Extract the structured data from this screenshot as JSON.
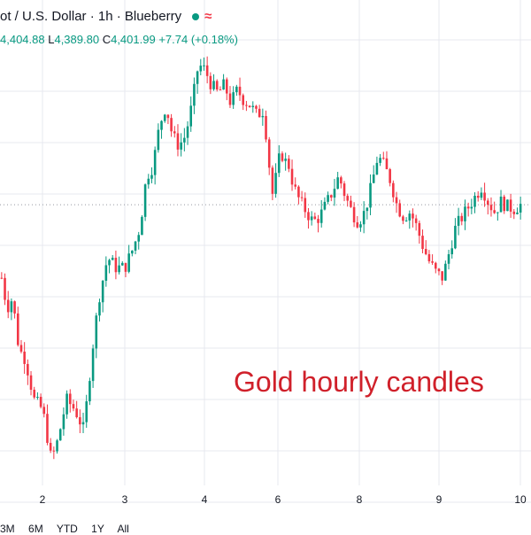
{
  "header": {
    "title": "ot / U.S. Dollar · 1h · Blueberry",
    "ohlc": {
      "open": "4,404.88",
      "high_label": "L",
      "high": "4,389.80",
      "close_label": "C",
      "close": "4,401.99",
      "change": "+7.74 (+0.18%)"
    },
    "status_color": "#089981"
  },
  "annotation_text": "Gold hourly candles",
  "range_buttons": [
    "3M",
    "6M",
    "YTD",
    "1Y",
    "All"
  ],
  "colors": {
    "up": "#089981",
    "down": "#f23645",
    "grid": "#e7e9ef",
    "axis_text": "#131722",
    "annotation": "#d0202a"
  },
  "chart_data": {
    "type": "candlestick",
    "symbol": "Gold Spot / U.S. Dollar",
    "interval": "1h",
    "x_ticks": [
      "2",
      "3",
      "4",
      "6",
      "8",
      "9",
      "10"
    ],
    "ylim": [
      4150,
      4560
    ],
    "last_price": 4401.99,
    "close_path": [
      [
        0,
        4330
      ],
      [
        5,
        4300
      ],
      [
        10,
        4310
      ],
      [
        16,
        4260
      ],
      [
        22,
        4250
      ],
      [
        30,
        4210
      ],
      [
        38,
        4200
      ],
      [
        46,
        4150
      ],
      [
        52,
        4170
      ],
      [
        60,
        4210
      ],
      [
        68,
        4200
      ],
      [
        76,
        4180
      ],
      [
        84,
        4260
      ],
      [
        90,
        4310
      ],
      [
        98,
        4350
      ],
      [
        106,
        4340
      ],
      [
        114,
        4340
      ],
      [
        122,
        4360
      ],
      [
        128,
        4380
      ],
      [
        134,
        4430
      ],
      [
        140,
        4440
      ],
      [
        146,
        4480
      ],
      [
        152,
        4500
      ],
      [
        158,
        4470
      ],
      [
        164,
        4460
      ],
      [
        170,
        4470
      ],
      [
        176,
        4500
      ],
      [
        182,
        4540
      ],
      [
        188,
        4535
      ],
      [
        194,
        4520
      ],
      [
        200,
        4512
      ],
      [
        206,
        4520
      ],
      [
        212,
        4502
      ],
      [
        218,
        4515
      ],
      [
        224,
        4505
      ],
      [
        230,
        4500
      ],
      [
        236,
        4490
      ],
      [
        242,
        4495
      ],
      [
        246,
        4460
      ],
      [
        250,
        4410
      ],
      [
        254,
        4430
      ],
      [
        258,
        4455
      ],
      [
        262,
        4445
      ],
      [
        266,
        4440
      ],
      [
        270,
        4420
      ],
      [
        276,
        4405
      ],
      [
        282,
        4395
      ],
      [
        288,
        4385
      ],
      [
        294,
        4390
      ],
      [
        300,
        4402
      ],
      [
        306,
        4415
      ],
      [
        312,
        4430
      ],
      [
        318,
        4410
      ],
      [
        324,
        4395
      ],
      [
        330,
        4385
      ],
      [
        336,
        4395
      ],
      [
        342,
        4420
      ],
      [
        348,
        4450
      ],
      [
        354,
        4440
      ],
      [
        360,
        4425
      ],
      [
        366,
        4400
      ],
      [
        372,
        4390
      ],
      [
        378,
        4395
      ],
      [
        384,
        4380
      ],
      [
        390,
        4360
      ],
      [
        396,
        4345
      ],
      [
        402,
        4335
      ],
      [
        408,
        4330
      ],
      [
        414,
        4355
      ],
      [
        420,
        4380
      ],
      [
        426,
        4390
      ],
      [
        432,
        4400
      ],
      [
        438,
        4410
      ],
      [
        444,
        4420
      ],
      [
        450,
        4405
      ],
      [
        456,
        4395
      ],
      [
        462,
        4405
      ],
      [
        468,
        4400
      ],
      [
        474,
        4398
      ],
      [
        480,
        4402
      ]
    ]
  }
}
